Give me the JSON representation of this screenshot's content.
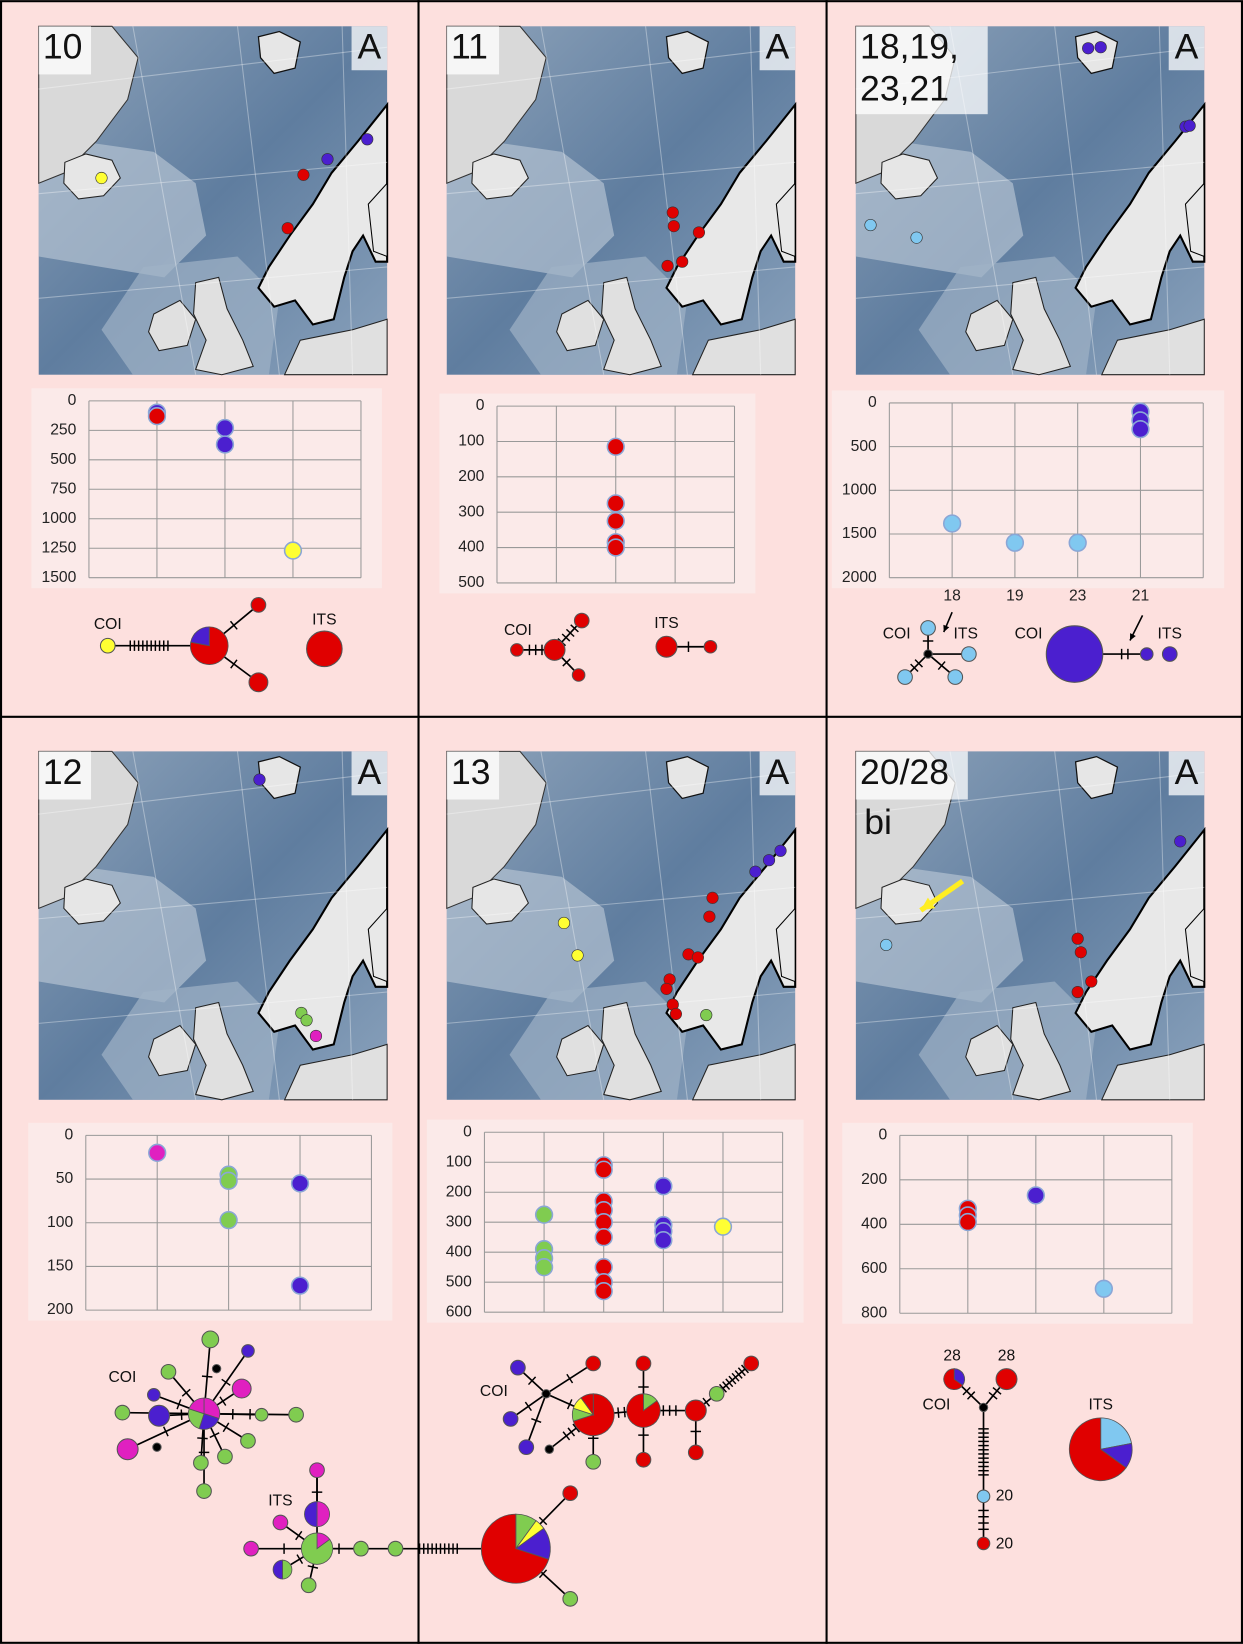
{
  "panels": [
    {
      "label": "10",
      "corner": "A",
      "network_labels": [
        "COI",
        "ITS"
      ]
    },
    {
      "label": "11",
      "corner": "A",
      "network_labels": [
        "COI",
        "ITS"
      ]
    },
    {
      "label": [
        "18,19,",
        "23,21"
      ],
      "corner": "A",
      "network_labels": [
        "COI",
        "ITS",
        "COI",
        "ITS"
      ]
    },
    {
      "label": "12",
      "corner": "A",
      "network_labels": [
        "COI",
        "ITS"
      ]
    },
    {
      "label": "13",
      "corner": "A",
      "network_labels": [
        "COI"
      ]
    },
    {
      "label": "20/28",
      "corner": "A",
      "extra_label": "bi",
      "network_labels": [
        "28",
        "28",
        "COI",
        "ITS",
        "20",
        "20"
      ]
    }
  ],
  "chart_data": [
    {
      "type": "scatter",
      "categories": [
        null,
        null,
        null
      ],
      "ylim": [
        0,
        1500
      ],
      "y_inverted": true,
      "yticks": [
        0,
        250,
        500,
        750,
        1000,
        1250,
        1500
      ],
      "grid": true,
      "points": [
        {
          "category": 0,
          "value": 100,
          "color": "#4b1fcf"
        },
        {
          "category": 0,
          "value": 130,
          "color": "#e00000"
        },
        {
          "category": 1,
          "value": 230,
          "color": "#4b1fcf"
        },
        {
          "category": 1,
          "value": 370,
          "color": "#4b1fcf"
        },
        {
          "category": 2,
          "value": 1270,
          "color": "#ffff33"
        }
      ]
    },
    {
      "type": "scatter",
      "categories": [
        null,
        null,
        null
      ],
      "ylim": [
        0,
        500
      ],
      "y_inverted": true,
      "yticks": [
        0,
        100,
        200,
        300,
        400,
        500
      ],
      "grid": true,
      "points": [
        {
          "category": 1,
          "value": 115,
          "color": "#e00000"
        },
        {
          "category": 1,
          "value": 275,
          "color": "#e00000"
        },
        {
          "category": 1,
          "value": 325,
          "color": "#e00000"
        },
        {
          "category": 1,
          "value": 385,
          "color": "#e00000"
        },
        {
          "category": 1,
          "value": 400,
          "color": "#e00000"
        }
      ]
    },
    {
      "type": "scatter",
      "categories": [
        "18",
        "19",
        "23",
        "21"
      ],
      "ylim": [
        0,
        2000
      ],
      "y_inverted": true,
      "yticks": [
        0,
        500,
        1000,
        1500,
        2000
      ],
      "grid": true,
      "points": [
        {
          "category": 0,
          "value": 1380,
          "color": "#80c8f0"
        },
        {
          "category": 1,
          "value": 1600,
          "color": "#80c8f0"
        },
        {
          "category": 2,
          "value": 1600,
          "color": "#80c8f0"
        },
        {
          "category": 3,
          "value": 100,
          "color": "#4b1fcf"
        },
        {
          "category": 3,
          "value": 200,
          "color": "#4b1fcf"
        },
        {
          "category": 3,
          "value": 300,
          "color": "#4b1fcf"
        }
      ]
    },
    {
      "type": "scatter",
      "categories": [
        null,
        null,
        null
      ],
      "ylim": [
        0,
        200
      ],
      "y_inverted": true,
      "yticks": [
        0,
        50,
        100,
        150,
        200
      ],
      "grid": true,
      "points": [
        {
          "category": 0,
          "value": 20,
          "color": "#e020c0"
        },
        {
          "category": 1,
          "value": 45,
          "color": "#80cc50"
        },
        {
          "category": 1,
          "value": 52,
          "color": "#80cc50"
        },
        {
          "category": 1,
          "value": 97,
          "color": "#80cc50"
        },
        {
          "category": 2,
          "value": 55,
          "color": "#4b1fcf"
        },
        {
          "category": 2,
          "value": 172,
          "color": "#4b1fcf"
        }
      ]
    },
    {
      "type": "scatter",
      "categories": [
        null,
        null,
        null,
        null
      ],
      "ylim": [
        0,
        600
      ],
      "y_inverted": true,
      "yticks": [
        0,
        100,
        200,
        300,
        400,
        500,
        600
      ],
      "grid": true,
      "points": [
        {
          "category": 0,
          "value": 275,
          "color": "#80cc50"
        },
        {
          "category": 0,
          "value": 390,
          "color": "#80cc50"
        },
        {
          "category": 0,
          "value": 420,
          "color": "#80cc50"
        },
        {
          "category": 0,
          "value": 450,
          "color": "#80cc50"
        },
        {
          "category": 1,
          "value": 110,
          "color": "#e00000"
        },
        {
          "category": 1,
          "value": 125,
          "color": "#e00000"
        },
        {
          "category": 1,
          "value": 230,
          "color": "#e00000"
        },
        {
          "category": 1,
          "value": 260,
          "color": "#e00000"
        },
        {
          "category": 1,
          "value": 300,
          "color": "#e00000"
        },
        {
          "category": 1,
          "value": 350,
          "color": "#e00000"
        },
        {
          "category": 1,
          "value": 450,
          "color": "#e00000"
        },
        {
          "category": 1,
          "value": 500,
          "color": "#e00000"
        },
        {
          "category": 1,
          "value": 530,
          "color": "#e00000"
        },
        {
          "category": 2,
          "value": 180,
          "color": "#4b1fcf"
        },
        {
          "category": 2,
          "value": 310,
          "color": "#4b1fcf"
        },
        {
          "category": 2,
          "value": 330,
          "color": "#4b1fcf"
        },
        {
          "category": 2,
          "value": 360,
          "color": "#4b1fcf"
        },
        {
          "category": 3,
          "value": 315,
          "color": "#ffff33"
        }
      ]
    },
    {
      "type": "scatter",
      "categories": [
        null,
        null,
        null
      ],
      "ylim": [
        0,
        800
      ],
      "y_inverted": true,
      "yticks": [
        0,
        200,
        400,
        600,
        800
      ],
      "grid": true,
      "points": [
        {
          "category": 0,
          "value": 330,
          "color": "#e00000"
        },
        {
          "category": 0,
          "value": 360,
          "color": "#e00000"
        },
        {
          "category": 0,
          "value": 390,
          "color": "#e00000"
        },
        {
          "category": 1,
          "value": 270,
          "color": "#4b1fcf"
        },
        {
          "category": 2,
          "value": 690,
          "color": "#80c8f0"
        }
      ]
    }
  ]
}
